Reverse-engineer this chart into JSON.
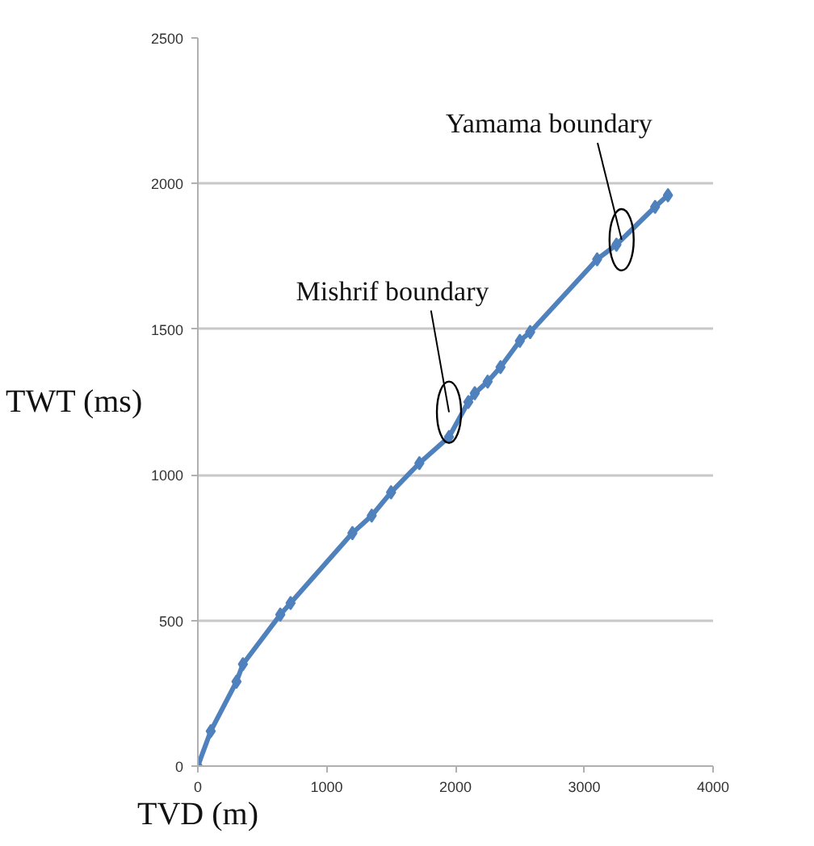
{
  "chart_data": {
    "type": "line",
    "xlabel": "TVD (m)",
    "ylabel": "TWT (ms)",
    "x": [
      0,
      100,
      300,
      350,
      640,
      720,
      1200,
      1350,
      1500,
      1720,
      1950,
      2100,
      2150,
      2250,
      2350,
      2500,
      2580,
      3100,
      3250,
      3550,
      3650
    ],
    "series": [
      {
        "color": "#4f81bd",
        "values": [
          0,
          120,
          290,
          350,
          520,
          560,
          800,
          860,
          940,
          1040,
          1130,
          1250,
          1280,
          1320,
          1370,
          1460,
          1490,
          1740,
          1790,
          1920,
          1960
        ]
      }
    ],
    "xlim": [
      0,
      4000
    ],
    "xticks": [
      0,
      1000,
      2000,
      3000,
      4000
    ],
    "ylim": [
      0,
      2500
    ],
    "yticks": [
      0,
      500,
      1000,
      1500,
      2000,
      2500
    ],
    "grid": "y",
    "marker": "diamond",
    "line_style": "solid",
    "annotations": [
      {
        "text": "Mishrif boundary",
        "x": 1950,
        "y": 1215
      },
      {
        "text": "Yamama boundary",
        "x": 3290,
        "y": 1807
      }
    ]
  }
}
